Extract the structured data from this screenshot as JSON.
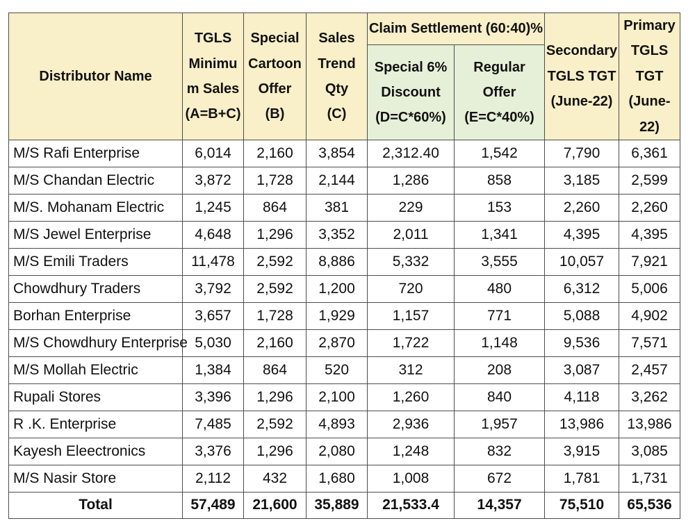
{
  "header": {
    "distributor": "Distributor Name",
    "tgls_min": [
      "TGLS",
      "Minimu",
      "m Sales",
      "(A=B+C)"
    ],
    "special_cartoon": [
      "Special",
      "Cartoon",
      "Offer",
      "(B)"
    ],
    "sales_trend": [
      "Sales",
      "Trend",
      "Qty",
      "(C)"
    ],
    "claim_settlement": "Claim Settlement (60:40)%",
    "special_discount": [
      "Special 6%",
      "Discount",
      "(D=C*60%)"
    ],
    "regular_offer": [
      "Regular",
      "Offer",
      "(E=C*40%)"
    ],
    "secondary": [
      "Secondary",
      "TGLS TGT",
      "(June-22)"
    ],
    "primary": [
      "Primary",
      "TGLS TGT",
      "(June-22)"
    ]
  },
  "rows": [
    [
      "M/S Rafi Enterprise",
      "6,014",
      "2,160",
      "3,854",
      "2,312.40",
      "1,542",
      "7,790",
      "6,361"
    ],
    [
      "M/S Chandan Electric",
      "3,872",
      "1,728",
      "2,144",
      "1,286",
      "858",
      "3,185",
      "2,599"
    ],
    [
      "M/S. Mohanam Electric",
      "1,245",
      "864",
      "381",
      "229",
      "153",
      "2,260",
      "2,260"
    ],
    [
      "M/S Jewel Enterprise",
      "4,648",
      "1,296",
      "3,352",
      "2,011",
      "1,341",
      "4,395",
      "4,395"
    ],
    [
      "M/S Emili Traders",
      "11,478",
      "2,592",
      "8,886",
      "5,332",
      "3,555",
      "10,057",
      "7,921"
    ],
    [
      "Chowdhury Traders",
      "3,792",
      "2,592",
      "1,200",
      "720",
      "480",
      "6,312",
      "5,006"
    ],
    [
      "Borhan Enterprise",
      "3,657",
      "1,728",
      "1,929",
      "1,157",
      "771",
      "5,088",
      "4,902"
    ],
    [
      "M/S Chowdhury Enterprise",
      "5,030",
      "2,160",
      "2,870",
      "1,722",
      "1,148",
      "9,536",
      "7,571"
    ],
    [
      "M/S Mollah Electric",
      "1,384",
      "864",
      "520",
      "312",
      "208",
      "3,087",
      "2,457"
    ],
    [
      "Rupali Stores",
      "3,396",
      "1,296",
      "2,100",
      "1,260",
      "840",
      "4,118",
      "3,262"
    ],
    [
      "R .K. Enterprise",
      "7,485",
      "2,592",
      "4,893",
      "2,936",
      "1,957",
      "13,986",
      "13,986"
    ],
    [
      "Kayesh Eleectronics",
      "3,376",
      "1,296",
      "2,080",
      "1,248",
      "832",
      "3,915",
      "3,085"
    ],
    [
      "M/S Nasir Store",
      "2,112",
      "432",
      "1,680",
      "1,008",
      "672",
      "1,781",
      "1,731"
    ]
  ],
  "total": [
    "Total",
    "57,489",
    "21,600",
    "35,889",
    "21,533.4",
    "14,357",
    "75,510",
    "65,536"
  ],
  "colors": {
    "header_bg": "#f9efc8",
    "claim_sub_bg": "#e6f0d8",
    "border": "#4d4d4d"
  }
}
